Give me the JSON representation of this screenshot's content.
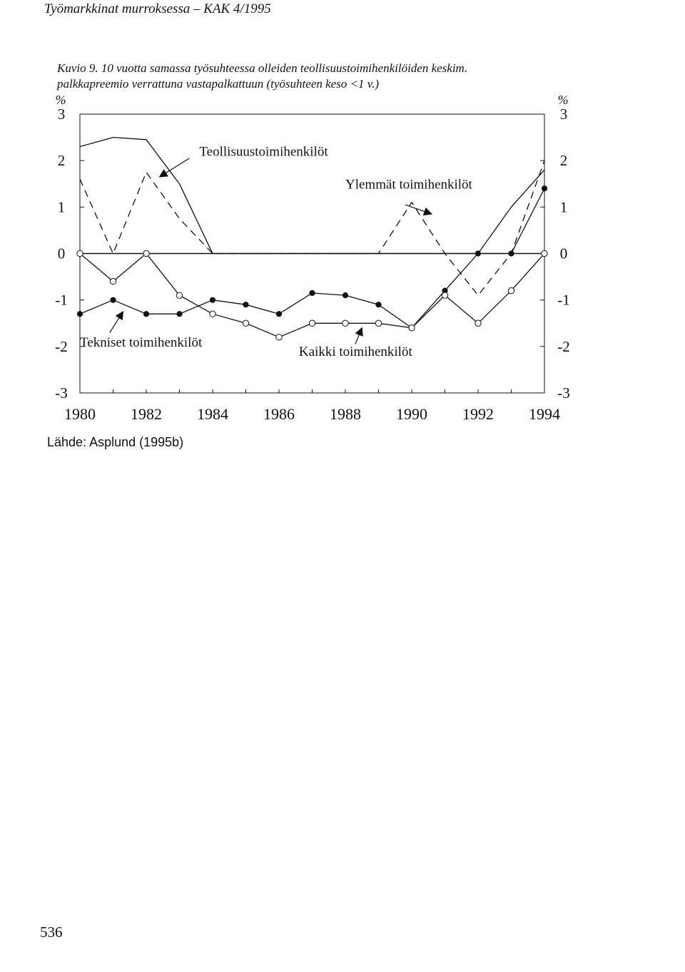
{
  "header": {
    "running_title": "Työmarkkinat murroksessa – KAK 4/1995"
  },
  "figure": {
    "caption_line1": "Kuvio 9. 10 vuotta samassa työsuhteessa olleiden teollisuustoimihenkilöiden keskim.",
    "caption_line2": "palkkapreemio verrattuna vastapalkattuun (työsuhteen keso <1 v.)"
  },
  "chart_data": {
    "type": "line",
    "x": [
      1980,
      1981,
      1982,
      1983,
      1984,
      1985,
      1986,
      1987,
      1988,
      1989,
      1990,
      1991,
      1992,
      1993,
      1994
    ],
    "xticks": [
      1980,
      1982,
      1984,
      1986,
      1988,
      1990,
      1992,
      1994
    ],
    "xtick_labels": [
      "1980",
      "1982",
      "1984",
      "1986",
      "1988",
      "1990",
      "1992",
      "1994"
    ],
    "ylim": [
      -3,
      3
    ],
    "yticks": [
      -3,
      -2,
      -1,
      0,
      1,
      2,
      3
    ],
    "ytick_labels": [
      "-3",
      "-2",
      "-1",
      "0",
      "1",
      "2",
      "3"
    ],
    "ylabel_left": "%",
    "ylabel_right": "%",
    "grid": false,
    "zero_line": true,
    "series": [
      {
        "name": "Teollisuustoimihenkilöt",
        "style": "solid",
        "marker": "none",
        "values": [
          2.3,
          2.5,
          2.45,
          1.5,
          0,
          0,
          0,
          0,
          0,
          0,
          0,
          0,
          0,
          1.0,
          1.8
        ]
      },
      {
        "name": "Ylemmät toimihenkilöt",
        "style": "dashed",
        "marker": "none",
        "values": [
          1.6,
          0,
          1.75,
          0.75,
          0,
          0,
          0,
          0,
          0,
          0,
          1.1,
          0,
          -0.9,
          0,
          2.0
        ]
      },
      {
        "name": "Tekniset toimihenkilöt",
        "style": "solid",
        "marker": "filled",
        "values": [
          -1.3,
          -1.0,
          -1.3,
          -1.3,
          -1.0,
          -1.1,
          -1.3,
          -0.85,
          -0.9,
          -1.1,
          -1.6,
          -0.8,
          0,
          0,
          1.4
        ]
      },
      {
        "name": "Kaikki toimihenkilöt",
        "style": "solid",
        "marker": "open",
        "values": [
          0,
          -0.6,
          0,
          -0.9,
          -1.3,
          -1.5,
          -1.8,
          -1.5,
          -1.5,
          -1.5,
          -1.6,
          -0.9,
          -1.5,
          -0.8,
          0
        ]
      }
    ],
    "annotations": [
      {
        "text": "Teollisuustoimihenkilöt",
        "x": 1983.6,
        "y": 2.1
      },
      {
        "text": "Ylemmät toimihenkilöt",
        "x": 1988.0,
        "y": 1.4
      },
      {
        "text": "Tekniset toimihenkilöt",
        "x": 1980.0,
        "y": -2.0
      },
      {
        "text": "Kaikki toimihenkilöt",
        "x": 1986.6,
        "y": -2.2
      }
    ]
  },
  "footer": {
    "source": "Lähde: Asplund (1995b)",
    "page_number": "536"
  }
}
